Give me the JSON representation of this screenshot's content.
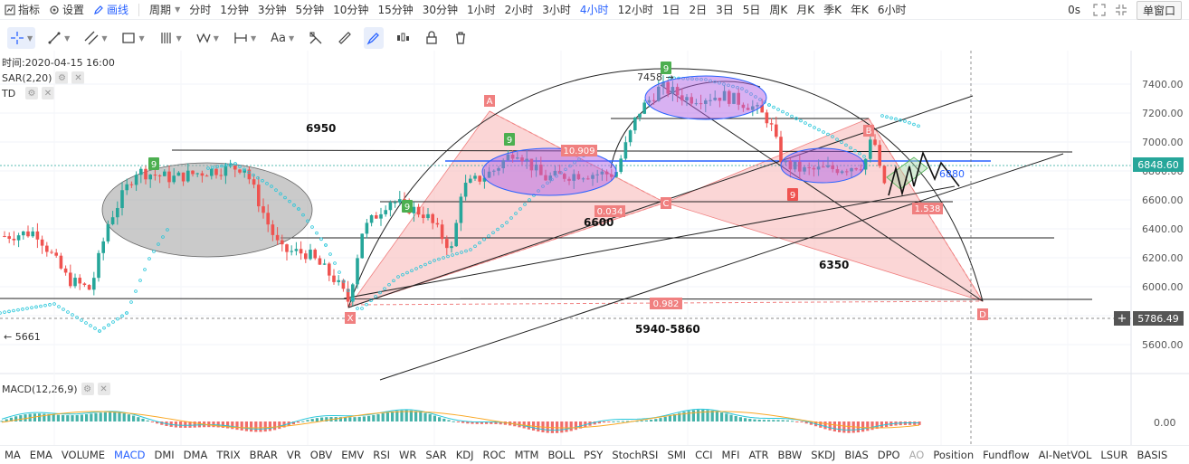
{
  "topbar": {
    "indicators": "指标",
    "settings": "设置",
    "draw": "画线",
    "period_label": "周期",
    "periods": [
      "分时",
      "1分钟",
      "3分钟",
      "5分钟",
      "10分钟",
      "15分钟",
      "30分钟",
      "1小时",
      "2小时",
      "3小时",
      "4小时",
      "12小时",
      "1日",
      "2日",
      "3日",
      "5日",
      "周K",
      "月K",
      "季K",
      "年K",
      "6小时"
    ],
    "active_period": "4小时",
    "countdown": "0s",
    "window_mode": "单窗口"
  },
  "legend": {
    "time": "时间:2020-04-15 16:00",
    "sar": "SAR(2,20)",
    "td": "TD",
    "macd": "MACD(12,26,9)"
  },
  "price_axis": {
    "ticks": [
      "7400.00",
      "7200.00",
      "7000.00",
      "6800.00",
      "6600.00",
      "6400.00",
      "6200.00",
      "6000.00",
      "5800.00",
      "5600.00"
    ],
    "current_price": "6848.60",
    "crosshair_price": "5786.49",
    "macd_zero": "0.00"
  },
  "annotations": {
    "lvl_6950": "6950",
    "lvl_6600": "6600",
    "lvl_6350": "6350",
    "lvl_5940": "5940-5860",
    "low_5661": "← 5661",
    "high_7458": "7458 →",
    "pt_6880": "6880",
    "pattern_a": "A",
    "pattern_b": "B",
    "pattern_c": "C",
    "pattern_d": "D",
    "pattern_x": "X",
    "ratio_1": "10.909",
    "ratio_2": "0.034",
    "ratio_3": "1.538",
    "ratio_4": "0.982",
    "td_9": "9"
  },
  "colors": {
    "up": "#26a69a",
    "down": "#ef5350",
    "accent": "#2962ff",
    "harmonic_fill": "#f8b4b4",
    "ellipse_purple": "#b264e6"
  },
  "bottombar": {
    "items": [
      "MA",
      "EMA",
      "VOLUME",
      "MACD",
      "DMI",
      "DMA",
      "TRIX",
      "BRAR",
      "VR",
      "OBV",
      "EMV",
      "RSI",
      "WR",
      "SAR",
      "KDJ",
      "ROC",
      "MTM",
      "BOLL",
      "PSY",
      "StochRSI",
      "SMI",
      "CCI",
      "MFI",
      "ATR",
      "BBW",
      "SKDJ",
      "BIAS",
      "DPO",
      "AO",
      "Position",
      "Fundflow",
      "AI-NetVOL",
      "LSUR",
      "BASIS"
    ],
    "active": "MACD",
    "muted": "AO"
  }
}
